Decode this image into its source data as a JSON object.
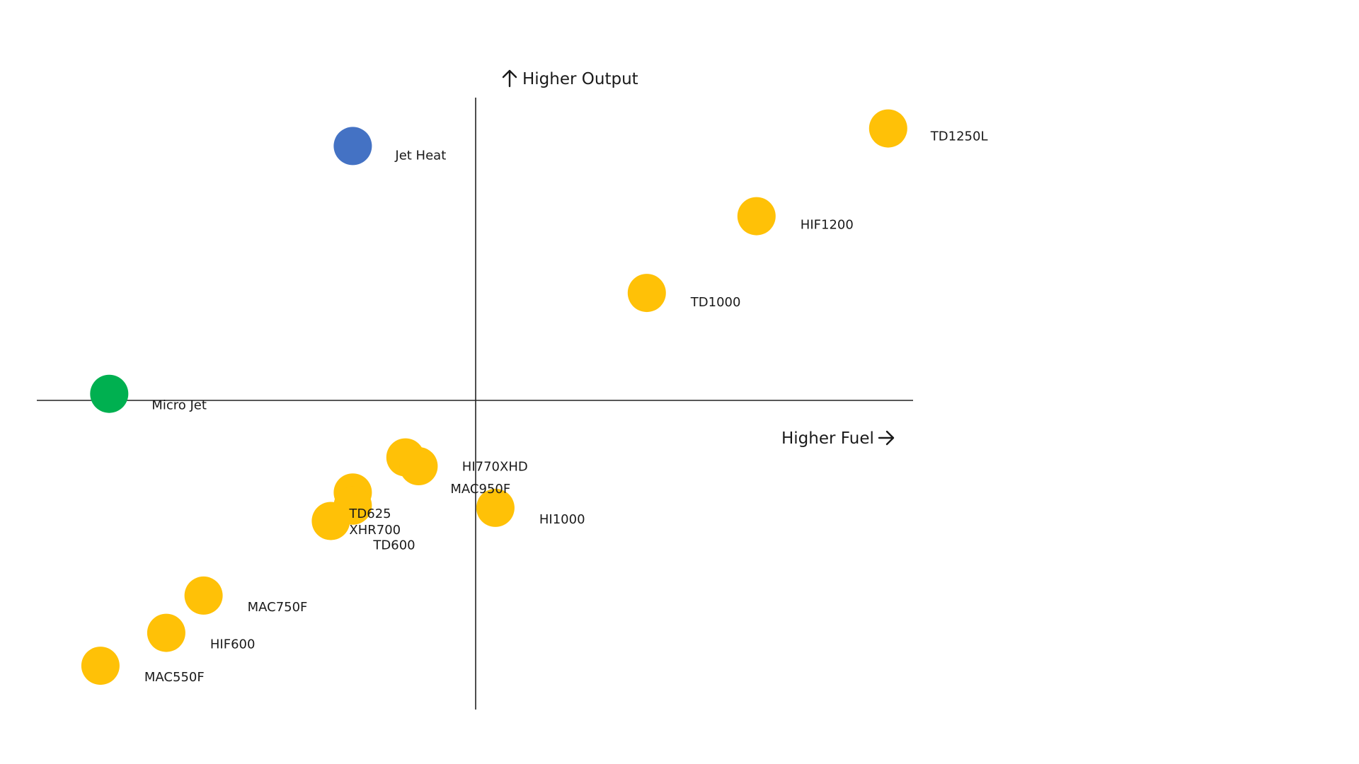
{
  "chart_data": {
    "type": "scatter",
    "title": "",
    "xlabel": "Higher Fuel",
    "ylabel": "Higher Output",
    "xlim": [
      -10,
      10
    ],
    "ylim": [
      -7,
      7
    ],
    "grid": false,
    "legend": "none",
    "colors": {
      "yellow": "#FFC107",
      "blue": "#4472C4",
      "green": "#00B050",
      "axis": "#222222"
    },
    "points": [
      {
        "label": "Jet Heat",
        "x": -2.8,
        "y": 5.8,
        "color": "#4472C4"
      },
      {
        "label": "TD1250L",
        "x": 9.4,
        "y": 6.2,
        "color": "#FFC107"
      },
      {
        "label": "HIF1200",
        "x": 6.4,
        "y": 4.2,
        "color": "#FFC107"
      },
      {
        "label": "TD1000",
        "x": 3.9,
        "y": 2.45,
        "color": "#FFC107"
      },
      {
        "label": "Micro Jet",
        "x": -8.35,
        "y": 0.15,
        "color": "#00B050"
      },
      {
        "label": "HI770XHD",
        "x": -1.6,
        "y": -1.3,
        "color": "#FFC107"
      },
      {
        "label": "MAC950F",
        "x": -1.3,
        "y": -1.5,
        "color": "#FFC107"
      },
      {
        "label": "TD625",
        "x": -2.8,
        "y": -2.1,
        "color": "#FFC107"
      },
      {
        "label": "XHR700",
        "x": -2.8,
        "y": -2.4,
        "color": "#FFC107"
      },
      {
        "label": "TD600",
        "x": -3.3,
        "y": -2.75,
        "color": "#FFC107"
      },
      {
        "label": "HI1000",
        "x": 0.45,
        "y": -2.45,
        "color": "#FFC107"
      },
      {
        "label": "MAC750F",
        "x": -6.2,
        "y": -4.45,
        "color": "#FFC107"
      },
      {
        "label": "HIF600",
        "x": -7.05,
        "y": -5.3,
        "color": "#FFC107"
      },
      {
        "label": "MAC550F",
        "x": -8.55,
        "y": -6.05,
        "color": "#FFC107"
      }
    ]
  }
}
